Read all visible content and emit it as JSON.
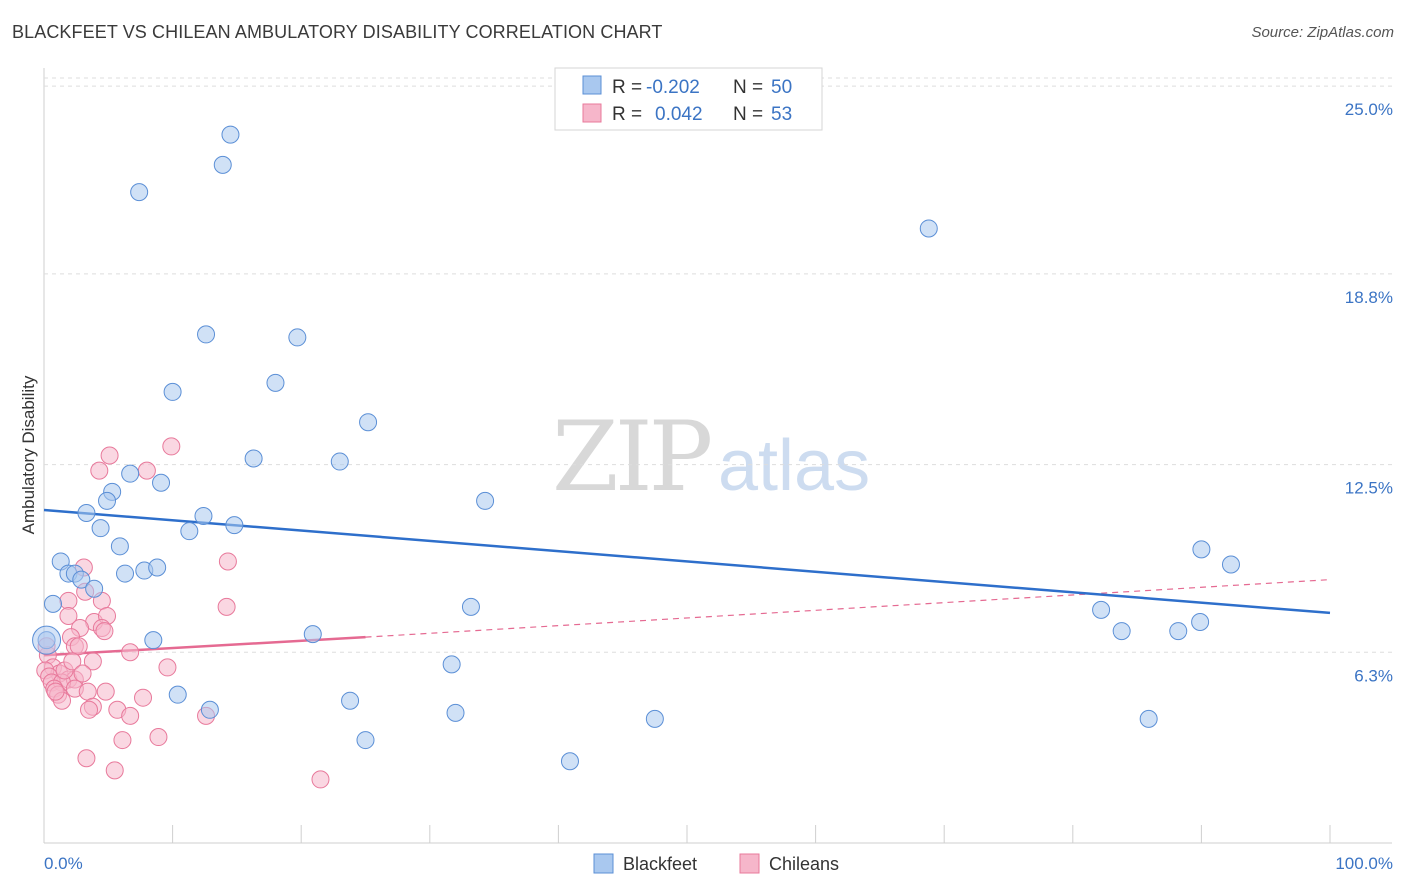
{
  "title": "BLACKFEET VS CHILEAN AMBULATORY DISABILITY CORRELATION CHART",
  "source": "Source: ZipAtlas.com",
  "watermark": {
    "zip": "ZIP",
    "atlas": "atlas"
  },
  "colors": {
    "blackfeet_fill": "#a9c8ef",
    "blackfeet_stroke": "#5b8fd6",
    "blackfeet_line": "#2e6fcb",
    "chileans_fill": "#f6b6ca",
    "chileans_stroke": "#e8799b",
    "chileans_line": "#e56a92",
    "tick_label": "#3b74c4",
    "grid": "#dddddd"
  },
  "legend": {
    "rows": [
      {
        "r_label": "R =",
        "r_value": "-0.202",
        "n_label": "N =",
        "n_value": "50"
      },
      {
        "r_label": "R =",
        "r_value": "0.042",
        "n_label": "N =",
        "n_value": "53"
      }
    ]
  },
  "bottom_legend": [
    "Blackfeet",
    "Chileans"
  ],
  "chart_data": {
    "type": "scatter",
    "title": "BLACKFEET VS CHILEAN AMBULATORY DISABILITY CORRELATION CHART",
    "xlabel": "",
    "ylabel": "Ambulatory Disability",
    "xlim": [
      0,
      100
    ],
    "ylim": [
      0,
      25.6
    ],
    "x_tick_labels": [
      "0.0%",
      "100.0%"
    ],
    "y_ticks": [
      6.3,
      12.5,
      18.8,
      25.0
    ],
    "y_tick_labels": [
      "6.3%",
      "12.5%",
      "18.8%",
      "25.0%"
    ],
    "grid": true,
    "legend_position": "top-center",
    "series": [
      {
        "name": "Blackfeet",
        "r": -0.202,
        "n": 50,
        "trend": {
          "x": [
            0,
            100
          ],
          "y": [
            11.0,
            7.6
          ]
        },
        "points": [
          [
            14.5,
            23.4
          ],
          [
            13.9,
            22.4
          ],
          [
            7.4,
            21.5
          ],
          [
            68.8,
            20.3
          ],
          [
            12.6,
            16.8
          ],
          [
            19.7,
            16.7
          ],
          [
            18.0,
            15.2
          ],
          [
            10.0,
            14.9
          ],
          [
            25.2,
            13.9
          ],
          [
            16.3,
            12.7
          ],
          [
            23.0,
            12.6
          ],
          [
            6.7,
            12.2
          ],
          [
            9.1,
            11.9
          ],
          [
            5.3,
            11.6
          ],
          [
            4.9,
            11.3
          ],
          [
            34.3,
            11.3
          ],
          [
            3.3,
            10.9
          ],
          [
            12.4,
            10.8
          ],
          [
            4.4,
            10.4
          ],
          [
            14.8,
            10.5
          ],
          [
            11.3,
            10.3
          ],
          [
            5.9,
            9.8
          ],
          [
            1.3,
            9.3
          ],
          [
            90.0,
            9.7
          ],
          [
            92.3,
            9.2
          ],
          [
            1.9,
            8.9
          ],
          [
            2.4,
            8.9
          ],
          [
            6.3,
            8.9
          ],
          [
            7.8,
            9.0
          ],
          [
            8.8,
            9.1
          ],
          [
            2.9,
            8.7
          ],
          [
            3.9,
            8.4
          ],
          [
            0.7,
            7.9
          ],
          [
            33.2,
            7.8
          ],
          [
            82.2,
            7.7
          ],
          [
            88.2,
            7.0
          ],
          [
            89.9,
            7.3
          ],
          [
            83.8,
            7.0
          ],
          [
            0.2,
            6.7
          ],
          [
            8.5,
            6.7
          ],
          [
            20.9,
            6.9
          ],
          [
            31.7,
            5.9
          ],
          [
            10.4,
            4.9
          ],
          [
            23.8,
            4.7
          ],
          [
            12.9,
            4.4
          ],
          [
            32.0,
            4.3
          ],
          [
            47.5,
            4.1
          ],
          [
            85.9,
            4.1
          ],
          [
            25.0,
            3.4
          ],
          [
            40.9,
            2.7
          ]
        ]
      },
      {
        "name": "Chileans",
        "r": 0.042,
        "n": 53,
        "trend_solid": {
          "x": [
            0,
            25
          ],
          "y": [
            6.2,
            6.8
          ]
        },
        "trend_dashed": {
          "x": [
            25,
            100
          ],
          "y": [
            6.8,
            8.7
          ]
        },
        "points": [
          [
            5.1,
            12.8
          ],
          [
            9.9,
            13.1
          ],
          [
            4.3,
            12.3
          ],
          [
            8.0,
            12.3
          ],
          [
            3.1,
            9.1
          ],
          [
            14.3,
            9.3
          ],
          [
            1.9,
            8.0
          ],
          [
            4.5,
            8.0
          ],
          [
            14.2,
            7.8
          ],
          [
            3.2,
            8.3
          ],
          [
            1.9,
            7.5
          ],
          [
            3.9,
            7.3
          ],
          [
            4.9,
            7.5
          ],
          [
            4.5,
            7.1
          ],
          [
            2.8,
            7.1
          ],
          [
            4.7,
            7.0
          ],
          [
            2.1,
            6.8
          ],
          [
            2.4,
            6.5
          ],
          [
            2.7,
            6.5
          ],
          [
            6.7,
            6.3
          ],
          [
            0.3,
            6.2
          ],
          [
            3.8,
            6.0
          ],
          [
            0.7,
            5.8
          ],
          [
            1.2,
            5.6
          ],
          [
            9.6,
            5.8
          ],
          [
            0.1,
            5.7
          ],
          [
            0.4,
            5.5
          ],
          [
            1.9,
            5.4
          ],
          [
            2.4,
            5.4
          ],
          [
            0.6,
            5.3
          ],
          [
            1.4,
            5.3
          ],
          [
            0.8,
            5.1
          ],
          [
            2.4,
            5.1
          ],
          [
            3.4,
            5.0
          ],
          [
            4.8,
            5.0
          ],
          [
            1.1,
            4.9
          ],
          [
            7.7,
            4.8
          ],
          [
            1.4,
            4.7
          ],
          [
            3.8,
            4.5
          ],
          [
            3.5,
            4.4
          ],
          [
            5.7,
            4.4
          ],
          [
            6.7,
            4.2
          ],
          [
            12.6,
            4.2
          ],
          [
            6.1,
            3.4
          ],
          [
            8.9,
            3.5
          ],
          [
            3.3,
            2.8
          ],
          [
            5.5,
            2.4
          ],
          [
            21.5,
            2.1
          ],
          [
            0.2,
            6.5
          ],
          [
            1.6,
            5.7
          ],
          [
            0.9,
            5.0
          ],
          [
            2.2,
            6.0
          ],
          [
            3.0,
            5.6
          ]
        ]
      }
    ]
  }
}
